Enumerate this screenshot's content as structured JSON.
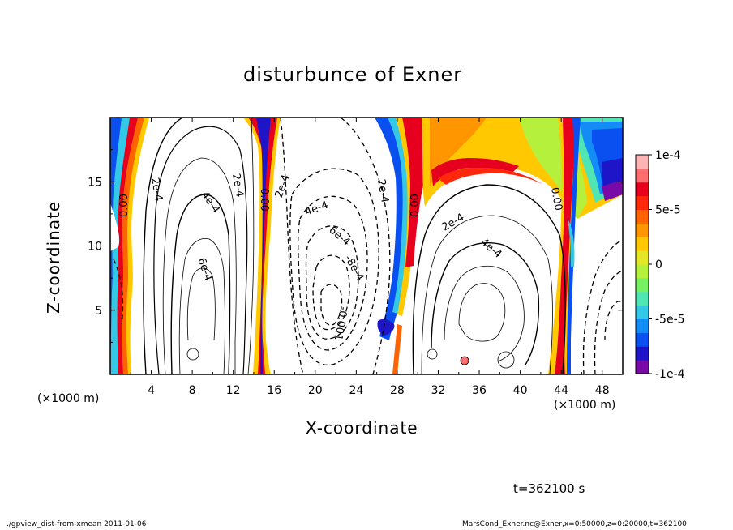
{
  "chart_data": {
    "type": "heatmap",
    "title": "disturbunce of Exner",
    "xlabel": "X-coordinate",
    "ylabel": "Z-coordinate",
    "x_unit": "(×1000 m)",
    "y_unit": "(×1000 m)",
    "xlim": [
      0,
      50
    ],
    "ylim": [
      0,
      20
    ],
    "x_ticks": [
      "4",
      "8",
      "12",
      "16",
      "20",
      "24",
      "28",
      "32",
      "36",
      "40",
      "44",
      "48"
    ],
    "y_ticks": [
      "5",
      "10",
      "15"
    ],
    "colorbar": {
      "ticks": [
        "1e-4",
        "5e-5",
        "0",
        "-5e-5",
        "-1e-4"
      ],
      "range": [
        -0.0001,
        0.0001
      ],
      "colors": [
        "#7a0aa8",
        "#1e14c8",
        "#0a50f0",
        "#148cf5",
        "#32c8e6",
        "#50e6b4",
        "#78f064",
        "#b4f03c",
        "#e6e628",
        "#ffc800",
        "#ff9600",
        "#ff6400",
        "#ff280a",
        "#e6001e",
        "#ff6e6e",
        "#ffb4b4"
      ]
    },
    "contour_labels": [
      "0.00",
      "2e-4",
      "4e-4",
      "6e-4",
      "2e-4",
      "0.00",
      "2e-4",
      "4e-4",
      "6e-4",
      "-8e-4",
      "-0.001",
      "2e-4",
      "0.00",
      "2e-4",
      "4e-4",
      "0.00"
    ],
    "time_label": "t=362100 s"
  },
  "footer": {
    "left": "./gpview_dist-from-xmean  2011-01-06",
    "right": "MarsCond_Exner.nc@Exner,x=0:50000,z=0:20000,t=362100"
  }
}
